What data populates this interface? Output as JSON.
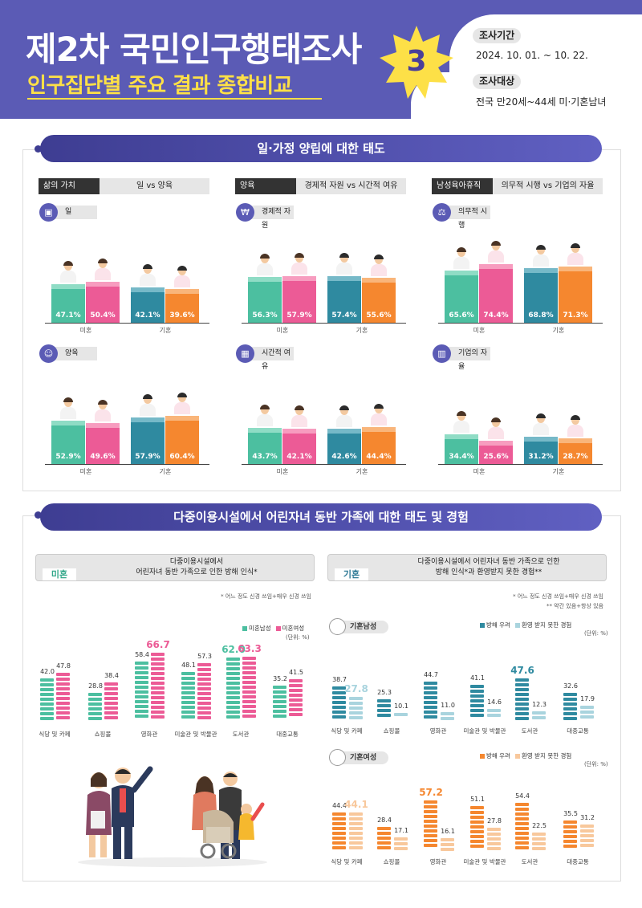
{
  "header": {
    "title": "제2차 국민인구행태조사",
    "subtitle": "인구집단별 주요 결과 종합비교",
    "badge": "3",
    "period_label": "조사기간",
    "period_value": "2024. 10. 01. ~ 10. 22.",
    "target_label": "조사대상",
    "target_value": "전국 만20세~44세 미·기혼남녀"
  },
  "section1": {
    "title": "일·가정 양립에 대한 태도",
    "groups": [
      "미혼",
      "기혼"
    ],
    "columns": [
      {
        "key": "삶의 가치",
        "value": "일 vs 양육",
        "charts": [
          {
            "label": "일",
            "icon": "briefcase-icon",
            "values": [
              47.1,
              50.4,
              42.1,
              39.6
            ]
          },
          {
            "label": "양육",
            "icon": "family-icon",
            "values": [
              52.9,
              49.6,
              57.9,
              60.4
            ]
          }
        ]
      },
      {
        "key": "양육",
        "value": "경제적 자원 vs 시간적 여유",
        "charts": [
          {
            "label": "경제적 자원",
            "icon": "money-icon",
            "values": [
              56.3,
              57.9,
              57.4,
              55.6
            ]
          },
          {
            "label": "시간적 여유",
            "icon": "calendar-icon",
            "values": [
              43.7,
              42.1,
              42.6,
              44.4
            ]
          }
        ]
      },
      {
        "key": "남성육아휴직",
        "value": "의무적 시행 vs 기업의 자율",
        "charts": [
          {
            "label": "의무적 시행",
            "icon": "gavel-icon",
            "values": [
              65.6,
              74.4,
              68.8,
              71.3
            ]
          },
          {
            "label": "기업의 자율",
            "icon": "building-icon",
            "values": [
              34.4,
              25.6,
              31.2,
              28.7
            ]
          }
        ]
      }
    ],
    "colors": [
      "#4cbfa0",
      "#ec5b96",
      "#2f8aa0",
      "#f5872f"
    ],
    "top_colors": [
      "#8fdcc5",
      "#f79cbf",
      "#76b9c8",
      "#f9b57a"
    ]
  },
  "section2": {
    "title": "다중이용시설에서 어린자녀 동반 가족에 대한 태도 및 경험",
    "left_card": {
      "tag": "미혼",
      "text1": "다중이용시설에서",
      "text2": "어린자녀 동반 가족으로 인한 방해 인식*"
    },
    "right_card": {
      "tag": "기혼",
      "text1": "다중이용시설에서 어린자녀 동반 가족으로 인한",
      "text2": "방해 인식*과 환영받지 못한 경험**"
    },
    "left_note": "* 어느 정도 신경 쓰임+매우 신경 쓰임",
    "right_note1": "* 어느 정도 신경 쓰임+매우 신경 쓰임",
    "right_note2": "** 약간 있음+항상 있음",
    "unit": "(단위: %)",
    "categories": [
      "식당 및 카페",
      "쇼핑몰",
      "영화관",
      "미술관 및 박물관",
      "도서관",
      "대중교통"
    ],
    "unmarried": {
      "legend": [
        "미혼남성",
        "미혼여성"
      ],
      "colors": [
        "#4cbfa0",
        "#ec5b96"
      ],
      "male": [
        42.0,
        28.8,
        58.4,
        48.1,
        62.0,
        35.2
      ],
      "female": [
        47.8,
        38.4,
        66.7,
        57.3,
        63.3,
        41.5
      ]
    },
    "married_male": {
      "label": "기혼남성",
      "legend": [
        "방해 우려",
        "환영 받지 못한 경험"
      ],
      "colors": [
        "#2f8aa0",
        "#a9d4de"
      ],
      "concern": [
        38.7,
        25.3,
        44.7,
        41.1,
        47.6,
        32.6
      ],
      "unwelcome": [
        27.8,
        10.1,
        11.0,
        14.6,
        12.3,
        17.9
      ]
    },
    "married_female": {
      "label": "기혼여성",
      "legend": [
        "방해 우려",
        "환영 받지 못한 경험"
      ],
      "colors": [
        "#f5872f",
        "#f8c89c"
      ],
      "concern": [
        44.4,
        28.4,
        57.2,
        51.1,
        54.4,
        35.5
      ],
      "unwelcome": [
        44.1,
        17.1,
        16.1,
        27.8,
        22.5,
        31.2
      ]
    }
  },
  "chart_data": [
    {
      "type": "bar",
      "title": "일",
      "categories": [
        "미혼",
        "기혼"
      ],
      "series": [
        {
          "values": [
            47.1,
            42.1
          ]
        },
        {
          "values": [
            50.4,
            39.6
          ]
        }
      ]
    },
    {
      "type": "bar",
      "title": "양육",
      "categories": [
        "미혼",
        "기혼"
      ],
      "series": [
        {
          "values": [
            52.9,
            57.9
          ]
        },
        {
          "values": [
            49.6,
            60.4
          ]
        }
      ]
    },
    {
      "type": "bar",
      "title": "경제적 자원",
      "categories": [
        "미혼",
        "기혼"
      ],
      "series": [
        {
          "values": [
            56.3,
            57.4
          ]
        },
        {
          "values": [
            57.9,
            55.6
          ]
        }
      ]
    },
    {
      "type": "bar",
      "title": "시간적 여유",
      "categories": [
        "미혼",
        "기혼"
      ],
      "series": [
        {
          "values": [
            43.7,
            42.6
          ]
        },
        {
          "values": [
            42.1,
            44.4
          ]
        }
      ]
    },
    {
      "type": "bar",
      "title": "의무적 시행",
      "categories": [
        "미혼",
        "기혼"
      ],
      "series": [
        {
          "values": [
            65.6,
            68.8
          ]
        },
        {
          "values": [
            74.4,
            71.3
          ]
        }
      ]
    },
    {
      "type": "bar",
      "title": "기업의 자율",
      "categories": [
        "미혼",
        "기혼"
      ],
      "series": [
        {
          "values": [
            34.4,
            31.2
          ]
        },
        {
          "values": [
            25.6,
            28.7
          ]
        }
      ]
    },
    {
      "type": "bar",
      "categories": [
        "식당 및 카페",
        "쇼핑몰",
        "영화관",
        "미술관 및 박물관",
        "도서관",
        "대중교통"
      ],
      "series": [
        {
          "name": "미혼남성",
          "values": [
            42.0,
            28.8,
            58.4,
            48.1,
            62.0,
            35.2
          ]
        },
        {
          "name": "미혼여성",
          "values": [
            47.8,
            38.4,
            66.7,
            57.3,
            63.3,
            41.5
          ]
        }
      ]
    },
    {
      "type": "bar",
      "title": "기혼남성",
      "categories": [
        "식당 및 카페",
        "쇼핑몰",
        "영화관",
        "미술관 및 박물관",
        "도서관",
        "대중교통"
      ],
      "series": [
        {
          "name": "방해 우려",
          "values": [
            38.7,
            25.3,
            44.7,
            41.1,
            47.6,
            32.6
          ]
        },
        {
          "name": "환영 받지 못한 경험",
          "values": [
            27.8,
            10.1,
            11.0,
            14.6,
            12.3,
            17.9
          ]
        }
      ]
    },
    {
      "type": "bar",
      "title": "기혼여성",
      "categories": [
        "식당 및 카페",
        "쇼핑몰",
        "영화관",
        "미술관 및 박물관",
        "도서관",
        "대중교통"
      ],
      "series": [
        {
          "name": "방해 우려",
          "values": [
            44.4,
            28.4,
            57.2,
            51.1,
            54.4,
            35.5
          ]
        },
        {
          "name": "환영 받지 못한 경험",
          "values": [
            44.1,
            17.1,
            16.1,
            27.8,
            22.5,
            31.2
          ]
        }
      ]
    }
  ]
}
